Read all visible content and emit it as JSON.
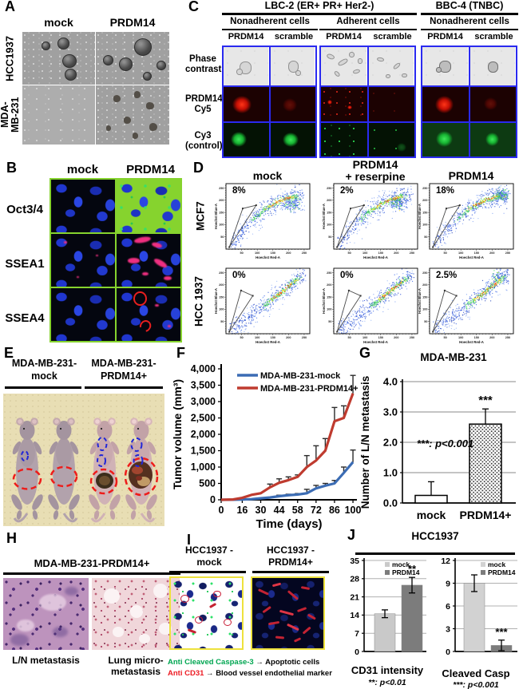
{
  "figure": {
    "colors": {
      "panel_c_border": "#2a2af0",
      "panel_b_border": "#86d32e",
      "panel_i_border": "#eee23c"
    },
    "panels": {
      "A": {
        "label": "A",
        "cols": [
          "mock",
          "PRDM14"
        ],
        "rows": [
          "HCC1937",
          "MDA-\nMB-231"
        ]
      },
      "B": {
        "label": "B",
        "cols": [
          "mock",
          "PRDM14"
        ],
        "rows": [
          "Oct3/4",
          "SSEA1",
          "SSEA4"
        ]
      },
      "C": {
        "label": "C",
        "groups": [
          "LBC-2 (ER+ PR+ Her2-)",
          "BBC-4 (TNBC)"
        ],
        "subgroups": [
          "Nonadherent cells",
          "Adherent cells",
          "Nonadherent cells"
        ],
        "cols": [
          "PRDM14",
          "scramble",
          "PRDM14",
          "scramble",
          "PRDM14",
          "scramble"
        ],
        "rows": [
          "Phase\ncontrast",
          "PRDM14-\nCy5",
          "Cy3\n(control)"
        ]
      },
      "D": {
        "label": "D",
        "cols": [
          "mock",
          "PRDM14\n+ reserpine",
          "PRDM14"
        ],
        "rows": [
          "MCF7",
          "HCC 1937"
        ],
        "percents": [
          "8%",
          "2%",
          "18%",
          "0%",
          "0%",
          "2.5%"
        ],
        "xaxis": "Hoechst Red-A",
        "yaxis": "Hoechst Blue-A",
        "ticks": [
          50,
          100,
          150,
          200,
          250
        ]
      },
      "E": {
        "label": "E",
        "cols": [
          "MDA-MB-231-\nmock",
          "MDA-MB-231-\nPRDM14+"
        ]
      },
      "F": {
        "label": "F"
      },
      "G": {
        "label": "G"
      },
      "H": {
        "label": "H",
        "header": "MDA-MB-231-PRDM14+",
        "captions": [
          "L/N metastasis",
          "Lung micro-\nmetastasis"
        ]
      },
      "I": {
        "label": "I",
        "cols": [
          "HCC1937 -\nmock",
          "HCC1937 -\nPRDM14+"
        ],
        "legend": [
          {
            "term": "Anti Cleaved Caspase-3",
            "arrow": "→",
            "desc": "Apoptotic cells",
            "color": "#00a651"
          },
          {
            "term": "Anti CD31",
            "arrow": "→",
            "desc": "Blood vessel endothelial marker",
            "color": "#ed1c24"
          }
        ]
      },
      "J": {
        "label": "J",
        "title": "HCC1937"
      }
    }
  },
  "chart_data": [
    {
      "id": "F",
      "type": "line",
      "xlabel": "Time (days)",
      "ylabel": "Tumor volume (mm³)",
      "xlim": [
        0,
        103
      ],
      "ylim": [
        0,
        4000
      ],
      "xticks": [
        0,
        16,
        30,
        44,
        58,
        72,
        86,
        100
      ],
      "yticks": [
        0,
        500,
        1000,
        1500,
        2000,
        2500,
        3000,
        3500,
        4000
      ],
      "x": [
        0,
        9,
        16,
        23,
        30,
        37,
        44,
        51,
        58,
        65,
        72,
        79,
        86,
        93,
        100
      ],
      "series": [
        {
          "name": "MDA-MB-231-mock",
          "color": "#3b6cb4",
          "values": [
            0,
            2,
            8,
            20,
            45,
            70,
            110,
            140,
            160,
            200,
            350,
            430,
            500,
            820,
            1150
          ],
          "errors": [
            0,
            0,
            0,
            0,
            0,
            0,
            30,
            30,
            30,
            120,
            90,
            70,
            90,
            180,
            370
          ]
        },
        {
          "name": "MDA-MB-231-PRDM14+",
          "color": "#bf3b2f",
          "values": [
            0,
            10,
            60,
            150,
            200,
            380,
            520,
            600,
            700,
            1000,
            1200,
            1500,
            2400,
            2500,
            3250
          ],
          "errors": [
            0,
            0,
            0,
            0,
            0,
            100,
            120,
            100,
            60,
            350,
            450,
            370,
            420,
            370,
            550
          ]
        }
      ],
      "legend_position": "top-left",
      "grid": false
    },
    {
      "id": "G",
      "type": "bar",
      "title": "MDA-MB-231",
      "ylabel": "Number of L/N metastasis",
      "categories": [
        "mock",
        "PRDM14+"
      ],
      "values": [
        0.25,
        2.6
      ],
      "errors": [
        0.45,
        0.5
      ],
      "sig": [
        "",
        "***"
      ],
      "note": "***: p<0.001",
      "yticks": [
        0,
        1,
        2,
        3,
        4
      ],
      "ylim": [
        0,
        4
      ],
      "grid": true
    },
    {
      "id": "J1",
      "type": "bar",
      "xlabel": "CD31 intensity",
      "legend": [
        "mock",
        "PRDM14"
      ],
      "categories": [
        "mock",
        "PRDM14"
      ],
      "values": [
        14.5,
        25.5
      ],
      "errors": [
        1.5,
        3
      ],
      "sig": [
        "",
        "**"
      ],
      "note": "**: p<0.01",
      "yticks": [
        0,
        7,
        14,
        21,
        28,
        35
      ],
      "ylim": [
        0,
        35
      ],
      "colors": [
        "#c9c9c9",
        "#7c7c7c"
      ],
      "grid": true
    },
    {
      "id": "J2",
      "type": "bar",
      "xlabel": "Cleaved Casp",
      "legend": [
        "mock",
        "PRDM14"
      ],
      "categories": [
        "mock",
        "PRDM14"
      ],
      "values": [
        9,
        0.8
      ],
      "errors": [
        1.1,
        0.7
      ],
      "sig": [
        "",
        "***"
      ],
      "note": "***: p<0.001",
      "yticks": [
        0,
        3,
        6,
        9,
        12
      ],
      "ylim": [
        0,
        12
      ],
      "colors": [
        "#d2d2d2",
        "#7c7c7c"
      ],
      "grid": true
    }
  ]
}
